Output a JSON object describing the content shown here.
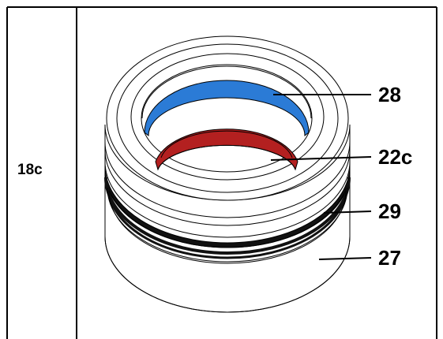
{
  "figure_id": "18c",
  "callouts": [
    {
      "label": "28"
    },
    {
      "label": "22c"
    },
    {
      "label": "29"
    },
    {
      "label": "27"
    }
  ],
  "colors": {
    "blue_ring": "#2b7bd6",
    "red_ring": "#b32020",
    "seal_band": "#000000"
  }
}
